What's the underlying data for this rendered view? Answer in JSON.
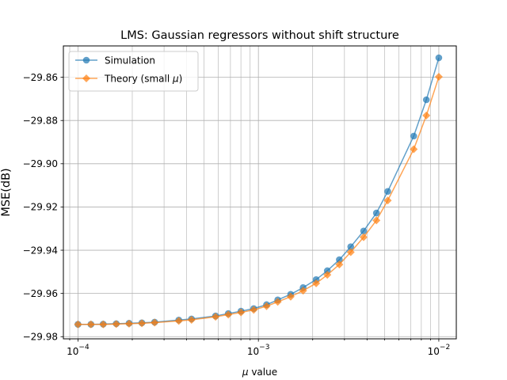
{
  "chart_data": {
    "type": "line",
    "title": "LMS: Gaussian regressors without shift structure",
    "xlabel_prefix": "μ",
    "xlabel_suffix": " value",
    "ylabel": "MSE(dB)",
    "x_scale": "log",
    "xlim": [
      8.3e-05,
      0.0125
    ],
    "ylim": [
      -29.981,
      -29.8455
    ],
    "grid": "both (major and minor on x)",
    "legend_position": "top-left",
    "x_tick_labels": [
      {
        "value": 0.0001,
        "base": "10",
        "exp": "−4"
      },
      {
        "value": 0.001,
        "base": "10",
        "exp": "−3"
      },
      {
        "value": 0.01,
        "base": "10",
        "exp": "−2"
      }
    ],
    "y_ticks": [
      -29.98,
      -29.96,
      -29.94,
      -29.92,
      -29.9,
      -29.88,
      -29.86
    ],
    "y_tick_labels": [
      "−29.98",
      "−29.96",
      "−29.94",
      "−29.92",
      "−29.90",
      "−29.88",
      "−29.86"
    ],
    "x": [
      0.0001,
      0.000118,
      0.000138,
      0.000163,
      0.000192,
      0.000226,
      0.000266,
      0.000362,
      0.000426,
      0.000579,
      0.000681,
      0.000801,
      0.000942,
      0.00111,
      0.00128,
      0.00151,
      0.00177,
      0.00209,
      0.00241,
      0.00281,
      0.00325,
      0.00383,
      0.00451,
      0.00521,
      0.00726,
      0.00853,
      0.01
    ],
    "series": [
      {
        "name": "Simulation",
        "color": "#1f77b4",
        "marker": "circle",
        "values": [
          -29.9743,
          -29.9743,
          -29.9742,
          -29.974,
          -29.9738,
          -29.9736,
          -29.9733,
          -29.9723,
          -29.9718,
          -29.9704,
          -29.9693,
          -29.9682,
          -29.967,
          -29.9652,
          -29.963,
          -29.9604,
          -29.9573,
          -29.9536,
          -29.9495,
          -29.9444,
          -29.9384,
          -29.9311,
          -29.9228,
          -29.9128,
          -29.8872,
          -29.8704,
          -29.851
        ]
      },
      {
        "name_prefix": "Theory (small ",
        "name_symbol": "μ",
        "name_suffix": ")",
        "color": "#ff7f0e",
        "marker": "diamond",
        "values": [
          -29.9743,
          -29.9743,
          -29.9743,
          -29.9742,
          -29.974,
          -29.9738,
          -29.9735,
          -29.9727,
          -29.9722,
          -29.9708,
          -29.9698,
          -29.9688,
          -29.9676,
          -29.9659,
          -29.9639,
          -29.9615,
          -29.9587,
          -29.9553,
          -29.9514,
          -29.9466,
          -29.9409,
          -29.934,
          -29.9262,
          -29.917,
          -29.8933,
          -29.8777,
          -29.8598
        ]
      }
    ]
  }
}
